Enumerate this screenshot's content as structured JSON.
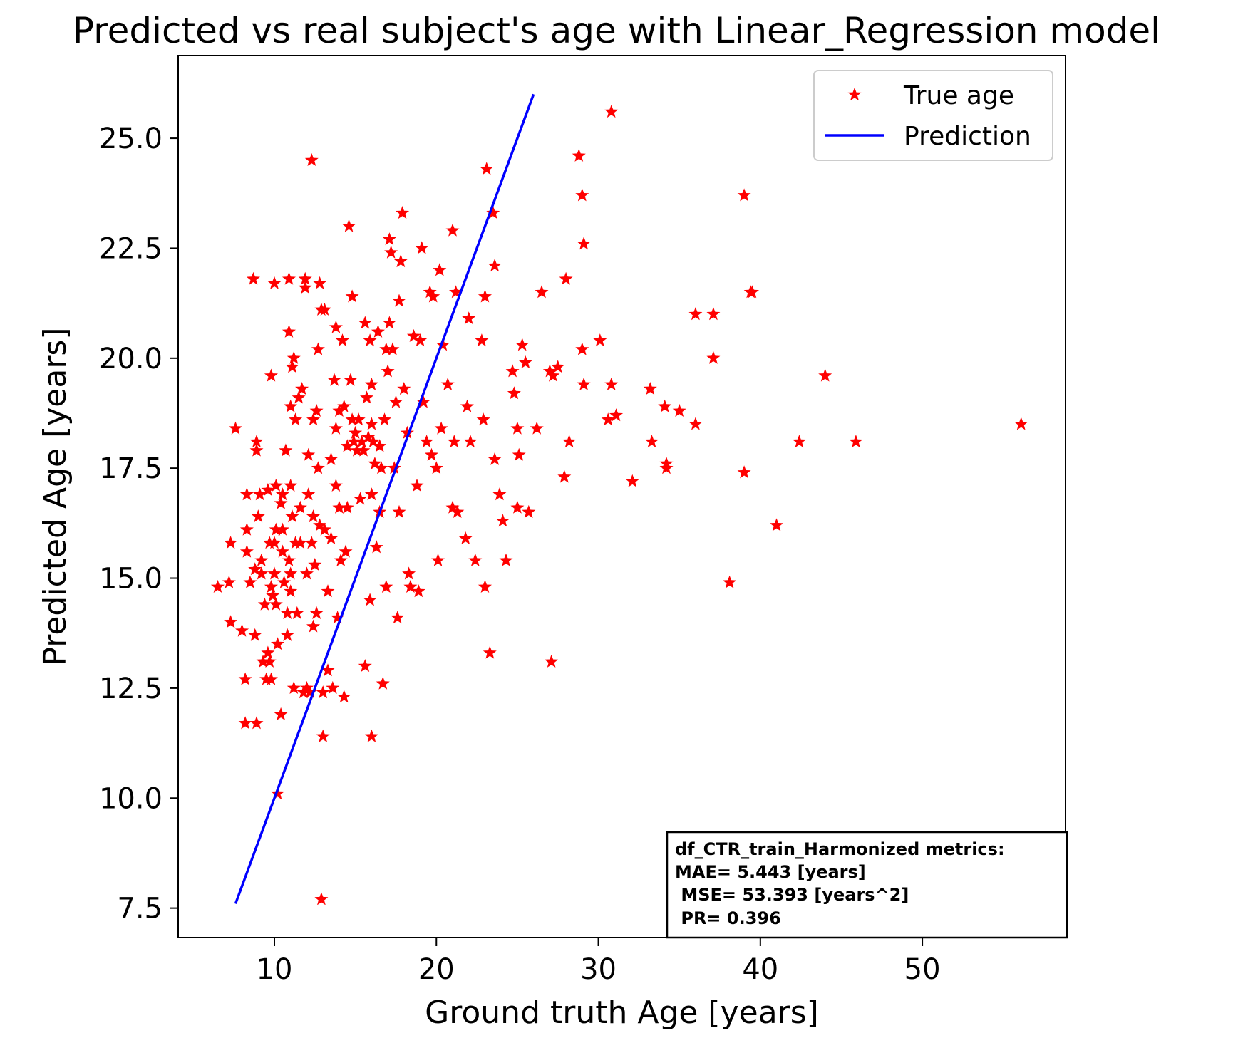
{
  "chart_data": {
    "type": "scatter",
    "title": "Predicted vs real subject's age with Linear_Regression model",
    "xlabel": "Ground truth Age [years]",
    "ylabel": "Predicted Age [years]",
    "xlim": [
      4.06,
      58.84
    ],
    "ylim": [
      6.83,
      26.88
    ],
    "xticks": [
      10,
      20,
      30,
      40,
      50
    ],
    "xtick_labels": [
      "10",
      "20",
      "30",
      "40",
      "50"
    ],
    "yticks": [
      7.5,
      10.0,
      12.5,
      15.0,
      17.5,
      20.0,
      22.5,
      25.0
    ],
    "ytick_labels": [
      "7.5",
      "10.0",
      "12.5",
      "15.0",
      "17.5",
      "20.0",
      "22.5",
      "25.0"
    ],
    "grid": false,
    "legend_position": "top-right",
    "colors": {
      "points": "#ff0000",
      "line": "#0000ff"
    },
    "series": [
      {
        "name": "True age",
        "kind": "scatter",
        "marker": "star",
        "points": [
          [
            6.5,
            14.8
          ],
          [
            7.2,
            14.9
          ],
          [
            7.3,
            15.8
          ],
          [
            7.3,
            14.0
          ],
          [
            7.6,
            18.4
          ],
          [
            8.0,
            13.8
          ],
          [
            8.2,
            12.7
          ],
          [
            8.2,
            11.7
          ],
          [
            8.3,
            16.9
          ],
          [
            8.3,
            16.1
          ],
          [
            8.3,
            15.6
          ],
          [
            8.5,
            14.9
          ],
          [
            8.7,
            21.8
          ],
          [
            8.8,
            15.2
          ],
          [
            8.8,
            13.7
          ],
          [
            8.9,
            18.1
          ],
          [
            8.9,
            17.9
          ],
          [
            8.9,
            11.7
          ],
          [
            9.0,
            16.4
          ],
          [
            9.1,
            16.9
          ],
          [
            9.2,
            15.4
          ],
          [
            9.2,
            15.1
          ],
          [
            9.3,
            13.1
          ],
          [
            9.4,
            14.4
          ],
          [
            9.5,
            12.7
          ],
          [
            9.6,
            17.0
          ],
          [
            9.6,
            13.3
          ],
          [
            9.7,
            15.8
          ],
          [
            9.7,
            13.1
          ],
          [
            9.8,
            19.6
          ],
          [
            9.8,
            14.8
          ],
          [
            9.8,
            12.7
          ],
          [
            9.9,
            14.6
          ],
          [
            10.0,
            21.7
          ],
          [
            10.0,
            15.8
          ],
          [
            10.0,
            15.1
          ],
          [
            10.1,
            17.1
          ],
          [
            10.1,
            16.1
          ],
          [
            10.1,
            14.4
          ],
          [
            10.2,
            10.1
          ],
          [
            10.2,
            13.5
          ],
          [
            10.4,
            11.9
          ],
          [
            10.4,
            16.7
          ],
          [
            10.5,
            16.9
          ],
          [
            10.5,
            16.1
          ],
          [
            10.5,
            15.6
          ],
          [
            10.6,
            14.9
          ],
          [
            10.7,
            17.9
          ],
          [
            10.8,
            14.2
          ],
          [
            10.8,
            13.7
          ],
          [
            10.9,
            21.8
          ],
          [
            10.9,
            20.6
          ],
          [
            10.9,
            15.4
          ],
          [
            11.0,
            18.9
          ],
          [
            11.0,
            17.1
          ],
          [
            11.0,
            15.1
          ],
          [
            11.0,
            14.7
          ],
          [
            11.1,
            19.8
          ],
          [
            11.1,
            16.4
          ],
          [
            11.2,
            20.0
          ],
          [
            11.2,
            12.5
          ],
          [
            11.3,
            18.6
          ],
          [
            11.3,
            15.8
          ],
          [
            11.4,
            14.2
          ],
          [
            11.5,
            19.1
          ],
          [
            11.6,
            16.6
          ],
          [
            11.6,
            15.8
          ],
          [
            11.7,
            19.3
          ],
          [
            11.8,
            12.4
          ],
          [
            11.9,
            21.8
          ],
          [
            11.9,
            21.6
          ],
          [
            12.0,
            12.5
          ],
          [
            12.0,
            15.1
          ],
          [
            12.1,
            17.8
          ],
          [
            12.1,
            16.9
          ],
          [
            12.2,
            12.4
          ],
          [
            12.3,
            24.5
          ],
          [
            12.3,
            15.8
          ],
          [
            12.4,
            18.6
          ],
          [
            12.4,
            16.4
          ],
          [
            12.4,
            13.9
          ],
          [
            12.5,
            15.3
          ],
          [
            12.6,
            18.8
          ],
          [
            12.6,
            14.2
          ],
          [
            12.7,
            20.2
          ],
          [
            12.7,
            17.5
          ],
          [
            12.8,
            21.7
          ],
          [
            12.8,
            16.2
          ],
          [
            12.9,
            21.1
          ],
          [
            12.9,
            7.7
          ],
          [
            13.0,
            12.4
          ],
          [
            13.0,
            11.4
          ],
          [
            13.1,
            21.1
          ],
          [
            13.1,
            16.1
          ],
          [
            13.3,
            14.7
          ],
          [
            13.3,
            12.9
          ],
          [
            13.5,
            17.7
          ],
          [
            13.5,
            15.9
          ],
          [
            13.6,
            12.5
          ],
          [
            13.7,
            19.5
          ],
          [
            13.8,
            20.7
          ],
          [
            13.8,
            18.4
          ],
          [
            13.8,
            17.1
          ],
          [
            13.9,
            14.1
          ],
          [
            14.0,
            18.8
          ],
          [
            14.0,
            16.6
          ],
          [
            14.1,
            15.4
          ],
          [
            14.2,
            20.4
          ],
          [
            14.3,
            18.9
          ],
          [
            14.3,
            12.3
          ],
          [
            14.4,
            15.6
          ],
          [
            14.5,
            18.0
          ],
          [
            14.5,
            16.6
          ],
          [
            14.6,
            23.0
          ],
          [
            14.7,
            19.5
          ],
          [
            14.8,
            21.4
          ],
          [
            14.8,
            18.6
          ],
          [
            14.9,
            18.1
          ],
          [
            15.0,
            18.3
          ],
          [
            15.1,
            17.9
          ],
          [
            15.2,
            18.6
          ],
          [
            15.3,
            16.8
          ],
          [
            15.4,
            18.1
          ],
          [
            15.5,
            17.9
          ],
          [
            15.6,
            20.8
          ],
          [
            15.6,
            13.0
          ],
          [
            15.7,
            19.1
          ],
          [
            15.8,
            18.2
          ],
          [
            15.9,
            20.4
          ],
          [
            15.9,
            14.5
          ],
          [
            16.0,
            19.4
          ],
          [
            16.0,
            18.5
          ],
          [
            16.0,
            16.9
          ],
          [
            16.0,
            11.4
          ],
          [
            16.1,
            18.1
          ],
          [
            16.2,
            17.6
          ],
          [
            16.3,
            15.7
          ],
          [
            16.4,
            20.6
          ],
          [
            16.5,
            18.0
          ],
          [
            16.5,
            16.5
          ],
          [
            16.6,
            17.5
          ],
          [
            16.7,
            12.6
          ],
          [
            16.8,
            18.6
          ],
          [
            16.9,
            20.2
          ],
          [
            16.9,
            14.8
          ],
          [
            17.0,
            19.7
          ],
          [
            17.1,
            22.7
          ],
          [
            17.1,
            20.8
          ],
          [
            17.2,
            22.4
          ],
          [
            17.3,
            20.2
          ],
          [
            17.4,
            17.5
          ],
          [
            17.5,
            19.0
          ],
          [
            17.6,
            14.1
          ],
          [
            17.7,
            21.3
          ],
          [
            17.7,
            16.5
          ],
          [
            17.8,
            22.2
          ],
          [
            17.9,
            23.3
          ],
          [
            18.0,
            19.3
          ],
          [
            18.2,
            18.3
          ],
          [
            18.3,
            15.1
          ],
          [
            18.4,
            14.8
          ],
          [
            18.6,
            20.5
          ],
          [
            18.8,
            17.1
          ],
          [
            18.9,
            14.7
          ],
          [
            19.0,
            20.4
          ],
          [
            19.1,
            22.5
          ],
          [
            19.2,
            19.0
          ],
          [
            19.4,
            18.1
          ],
          [
            19.6,
            21.5
          ],
          [
            19.7,
            17.8
          ],
          [
            19.8,
            21.4
          ],
          [
            20.0,
            17.5
          ],
          [
            20.1,
            15.4
          ],
          [
            20.2,
            22.0
          ],
          [
            20.3,
            18.4
          ],
          [
            20.4,
            20.3
          ],
          [
            20.7,
            19.4
          ],
          [
            21.0,
            22.9
          ],
          [
            21.0,
            16.6
          ],
          [
            21.1,
            18.1
          ],
          [
            21.2,
            21.5
          ],
          [
            21.3,
            16.5
          ],
          [
            21.8,
            15.9
          ],
          [
            21.9,
            18.9
          ],
          [
            22.0,
            20.9
          ],
          [
            22.1,
            18.1
          ],
          [
            22.4,
            15.4
          ],
          [
            22.8,
            20.4
          ],
          [
            22.9,
            18.6
          ],
          [
            23.0,
            21.4
          ],
          [
            23.0,
            14.8
          ],
          [
            23.1,
            24.3
          ],
          [
            23.3,
            13.3
          ],
          [
            23.5,
            23.3
          ],
          [
            23.6,
            17.7
          ],
          [
            23.6,
            22.1
          ],
          [
            23.9,
            16.9
          ],
          [
            24.1,
            16.3
          ],
          [
            24.3,
            15.4
          ],
          [
            24.7,
            19.7
          ],
          [
            24.8,
            19.2
          ],
          [
            25.0,
            18.4
          ],
          [
            25.0,
            16.6
          ],
          [
            25.1,
            17.8
          ],
          [
            25.3,
            20.3
          ],
          [
            25.5,
            19.9
          ],
          [
            25.7,
            16.5
          ],
          [
            26.2,
            18.4
          ],
          [
            26.5,
            21.5
          ],
          [
            27.0,
            19.7
          ],
          [
            27.1,
            13.1
          ],
          [
            27.2,
            19.6
          ],
          [
            27.5,
            19.8
          ],
          [
            27.9,
            17.3
          ],
          [
            28.0,
            21.8
          ],
          [
            28.2,
            18.1
          ],
          [
            28.8,
            24.6
          ],
          [
            29.0,
            23.7
          ],
          [
            29.0,
            20.2
          ],
          [
            29.1,
            22.6
          ],
          [
            29.1,
            19.4
          ],
          [
            30.1,
            20.4
          ],
          [
            30.6,
            18.6
          ],
          [
            30.8,
            25.6
          ],
          [
            30.8,
            19.4
          ],
          [
            31.1,
            18.7
          ],
          [
            32.1,
            17.2
          ],
          [
            33.2,
            19.3
          ],
          [
            33.3,
            18.1
          ],
          [
            34.1,
            18.9
          ],
          [
            34.2,
            17.6
          ],
          [
            34.2,
            17.5
          ],
          [
            35.0,
            18.8
          ],
          [
            36.0,
            21.0
          ],
          [
            36.0,
            18.5
          ],
          [
            37.1,
            21.0
          ],
          [
            37.1,
            20.0
          ],
          [
            38.1,
            14.9
          ],
          [
            39.0,
            23.7
          ],
          [
            39.0,
            17.4
          ],
          [
            39.4,
            21.5
          ],
          [
            39.5,
            21.5
          ],
          [
            41.0,
            16.2
          ],
          [
            42.4,
            18.1
          ],
          [
            44.0,
            19.6
          ],
          [
            45.9,
            18.1
          ],
          [
            56.1,
            18.5
          ]
        ]
      },
      {
        "name": "Prediction",
        "kind": "line",
        "x": [
          7.6,
          26.0
        ],
        "y": [
          7.6,
          26.0
        ]
      }
    ],
    "annotation": {
      "position": "bottom-right",
      "lines": [
        "df_CTR_train_Harmonized metrics:",
        "MAE= 5.443 [years]",
        " MSE= 53.393 [years^2]",
        " PR= 0.396"
      ]
    }
  }
}
